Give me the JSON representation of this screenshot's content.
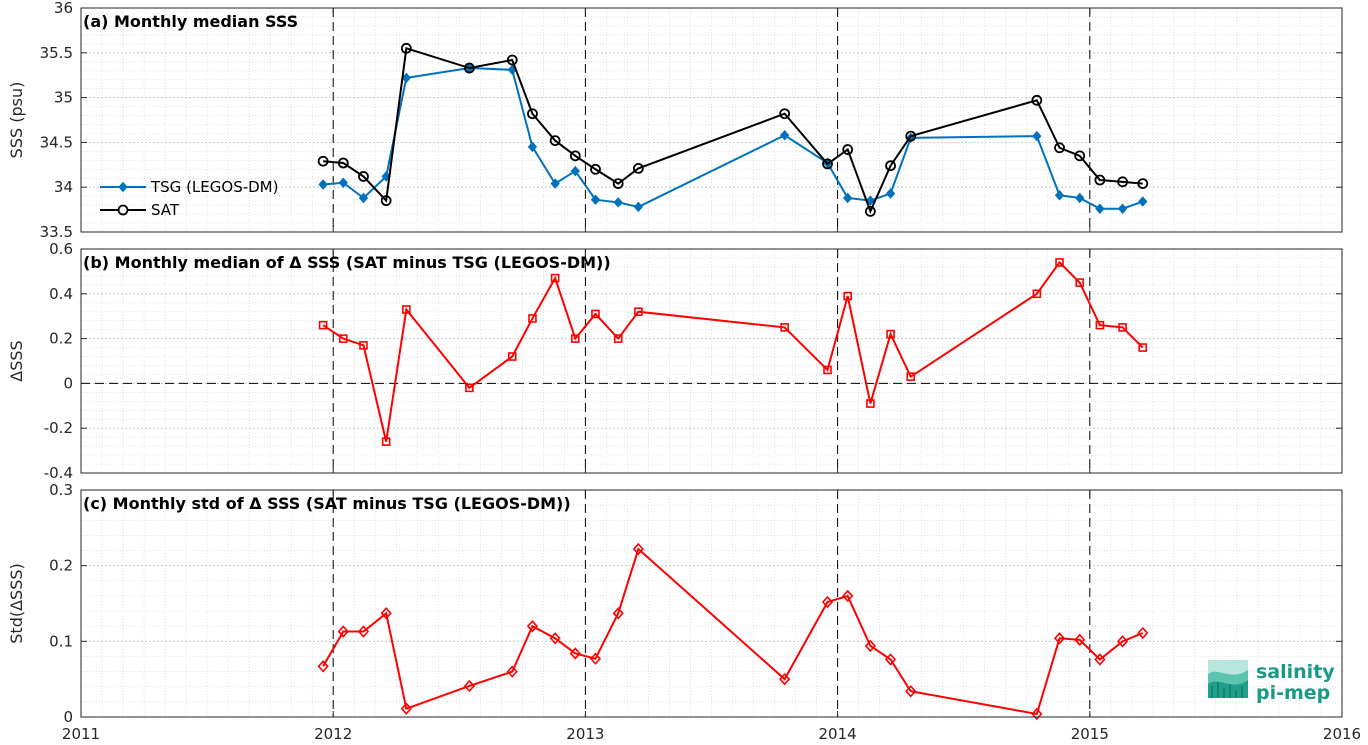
{
  "chart_data": [
    {
      "type": "line",
      "title": "(a) Monthly median SSS",
      "ylabel": "SSS (psu)",
      "xlim": [
        2011,
        2016
      ],
      "ylim": [
        33.5,
        36
      ],
      "xticks": [
        "2011",
        "2012",
        "2013",
        "2014",
        "2015",
        "2016"
      ],
      "yticks": [
        "33.5",
        "34",
        "34.5",
        "35",
        "35.5",
        "36"
      ],
      "grid": true,
      "legend": "left",
      "series": [
        {
          "name": "TSG (LEGOS-DM)",
          "color": "#0072bd",
          "marker": "diamond",
          "points": [
            [
              2011.96,
              34.03
            ],
            [
              2012.04,
              34.05
            ],
            [
              2012.12,
              33.88
            ],
            [
              2012.21,
              34.12
            ],
            [
              2012.29,
              35.22
            ],
            [
              2012.54,
              35.33
            ],
            [
              2012.71,
              35.31
            ],
            [
              2012.79,
              34.45
            ],
            [
              2012.88,
              34.04
            ],
            [
              2012.96,
              34.18
            ],
            [
              2013.04,
              33.86
            ],
            [
              2013.13,
              33.83
            ],
            [
              2013.21,
              33.78
            ],
            [
              2013.79,
              34.58
            ],
            [
              2013.96,
              34.27
            ],
            [
              2014.04,
              33.88
            ],
            [
              2014.13,
              33.85
            ],
            [
              2014.21,
              33.93
            ],
            [
              2014.29,
              34.55
            ],
            [
              2014.79,
              34.57
            ],
            [
              2014.88,
              33.91
            ],
            [
              2014.96,
              33.88
            ],
            [
              2015.04,
              33.76
            ],
            [
              2015.13,
              33.76
            ],
            [
              2015.21,
              33.84
            ]
          ]
        },
        {
          "name": "SAT",
          "color": "#000000",
          "marker": "circle",
          "points": [
            [
              2011.96,
              34.29
            ],
            [
              2012.04,
              34.27
            ],
            [
              2012.12,
              34.12
            ],
            [
              2012.21,
              33.85
            ],
            [
              2012.29,
              35.55
            ],
            [
              2012.54,
              35.33
            ],
            [
              2012.71,
              35.42
            ],
            [
              2012.79,
              34.82
            ],
            [
              2012.88,
              34.52
            ],
            [
              2012.96,
              34.35
            ],
            [
              2013.04,
              34.2
            ],
            [
              2013.13,
              34.04
            ],
            [
              2013.21,
              34.21
            ],
            [
              2013.79,
              34.82
            ],
            [
              2013.96,
              34.26
            ],
            [
              2014.04,
              34.42
            ],
            [
              2014.13,
              33.73
            ],
            [
              2014.21,
              34.24
            ],
            [
              2014.29,
              34.57
            ],
            [
              2014.79,
              34.97
            ],
            [
              2014.88,
              34.44
            ],
            [
              2014.96,
              34.35
            ],
            [
              2015.04,
              34.08
            ],
            [
              2015.13,
              34.06
            ],
            [
              2015.21,
              34.04
            ]
          ]
        }
      ]
    },
    {
      "type": "line",
      "title": "(b) Monthly median of Δ SSS (SAT minus TSG (LEGOS-DM))",
      "ylabel": "ΔSSS",
      "xlim": [
        2011,
        2016
      ],
      "ylim": [
        -0.4,
        0.6
      ],
      "xticks": [
        "2011",
        "2012",
        "2013",
        "2014",
        "2015",
        "2016"
      ],
      "yticks": [
        "-0.4",
        "-0.2",
        "0",
        "0.2",
        "0.4",
        "0.6"
      ],
      "grid": true,
      "series": [
        {
          "color": "#ff0000",
          "marker": "square",
          "points": [
            [
              2011.96,
              0.26
            ],
            [
              2012.04,
              0.2
            ],
            [
              2012.12,
              0.17
            ],
            [
              2012.21,
              -0.26
            ],
            [
              2012.29,
              0.33
            ],
            [
              2012.54,
              -0.02
            ],
            [
              2012.71,
              0.12
            ],
            [
              2012.79,
              0.29
            ],
            [
              2012.88,
              0.47
            ],
            [
              2012.96,
              0.2
            ],
            [
              2013.04,
              0.31
            ],
            [
              2013.13,
              0.2
            ],
            [
              2013.21,
              0.32
            ],
            [
              2013.79,
              0.25
            ],
            [
              2013.96,
              0.06
            ],
            [
              2014.04,
              0.39
            ],
            [
              2014.13,
              -0.09
            ],
            [
              2014.21,
              0.22
            ],
            [
              2014.29,
              0.03
            ],
            [
              2014.79,
              0.4
            ],
            [
              2014.88,
              0.54
            ],
            [
              2014.96,
              0.45
            ],
            [
              2015.04,
              0.26
            ],
            [
              2015.13,
              0.25
            ],
            [
              2015.21,
              0.16
            ]
          ]
        }
      ]
    },
    {
      "type": "line",
      "title": "(c) Monthly std of Δ SSS (SAT minus TSG (LEGOS-DM))",
      "ylabel": "Std(ΔSSS)",
      "xlim": [
        2011,
        2016
      ],
      "ylim": [
        0,
        0.3
      ],
      "xticks": [
        "2011",
        "2012",
        "2013",
        "2014",
        "2015",
        "2016"
      ],
      "yticks": [
        "0",
        "0.1",
        "0.2",
        "0.3"
      ],
      "grid": true,
      "series": [
        {
          "color": "#ff0000",
          "marker": "diamond",
          "points": [
            [
              2011.96,
              0.067
            ],
            [
              2012.04,
              0.113
            ],
            [
              2012.12,
              0.113
            ],
            [
              2012.21,
              0.137
            ],
            [
              2012.29,
              0.011
            ],
            [
              2012.54,
              0.041
            ],
            [
              2012.71,
              0.06
            ],
            [
              2012.79,
              0.12
            ],
            [
              2012.88,
              0.104
            ],
            [
              2012.96,
              0.084
            ],
            [
              2013.04,
              0.077
            ],
            [
              2013.13,
              0.137
            ],
            [
              2013.21,
              0.222
            ],
            [
              2013.79,
              0.05
            ],
            [
              2013.96,
              0.152
            ],
            [
              2014.04,
              0.16
            ],
            [
              2014.13,
              0.094
            ],
            [
              2014.21,
              0.076
            ],
            [
              2014.29,
              0.034
            ],
            [
              2014.79,
              0.004
            ],
            [
              2014.88,
              0.104
            ],
            [
              2014.96,
              0.102
            ],
            [
              2015.04,
              0.076
            ],
            [
              2015.13,
              0.1
            ],
            [
              2015.21,
              0.111
            ]
          ]
        }
      ]
    }
  ],
  "logo": {
    "line1": "salinity",
    "line2": "pi-mep"
  }
}
